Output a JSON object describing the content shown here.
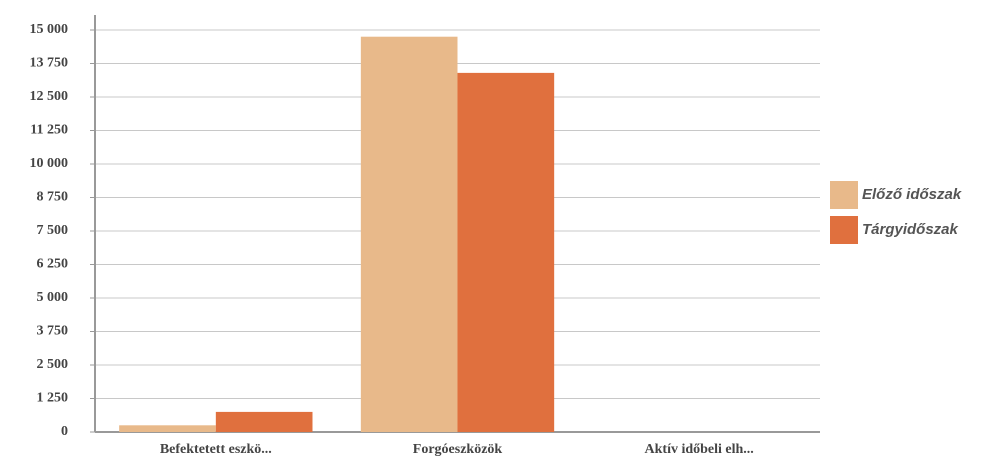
{
  "chart_data": {
    "type": "bar",
    "categories": [
      "Befektetett eszkö...",
      "Forgóeszközök",
      "Aktív időbeli elh..."
    ],
    "series": [
      {
        "name": "Előző időszak",
        "color": "#e8b98a",
        "values": [
          250,
          14750,
          0
        ]
      },
      {
        "name": "Tárgyidőszak",
        "color": "#e0703e",
        "values": [
          750,
          13400,
          0
        ]
      }
    ],
    "ylim": [
      0,
      15000
    ],
    "yticks": [
      0,
      {
        "value": 1250,
        "label": "1 250"
      },
      {
        "value": 2500,
        "label": "2 500"
      },
      {
        "value": 3750,
        "label": "3 750"
      },
      {
        "value": 5000,
        "label": "5 000"
      },
      {
        "value": 6250,
        "label": "6 250"
      },
      {
        "value": 7500,
        "label": "7 500"
      },
      {
        "value": 8750,
        "label": "8 750"
      },
      {
        "value": 10000,
        "label": "10 000"
      },
      {
        "value": 11250,
        "label": "11 250"
      },
      {
        "value": 12500,
        "label": "12 500"
      },
      {
        "value": 13750,
        "label": "13 750"
      },
      {
        "value": 15000,
        "label": "15 000"
      }
    ],
    "grid": true,
    "legend": "right"
  }
}
